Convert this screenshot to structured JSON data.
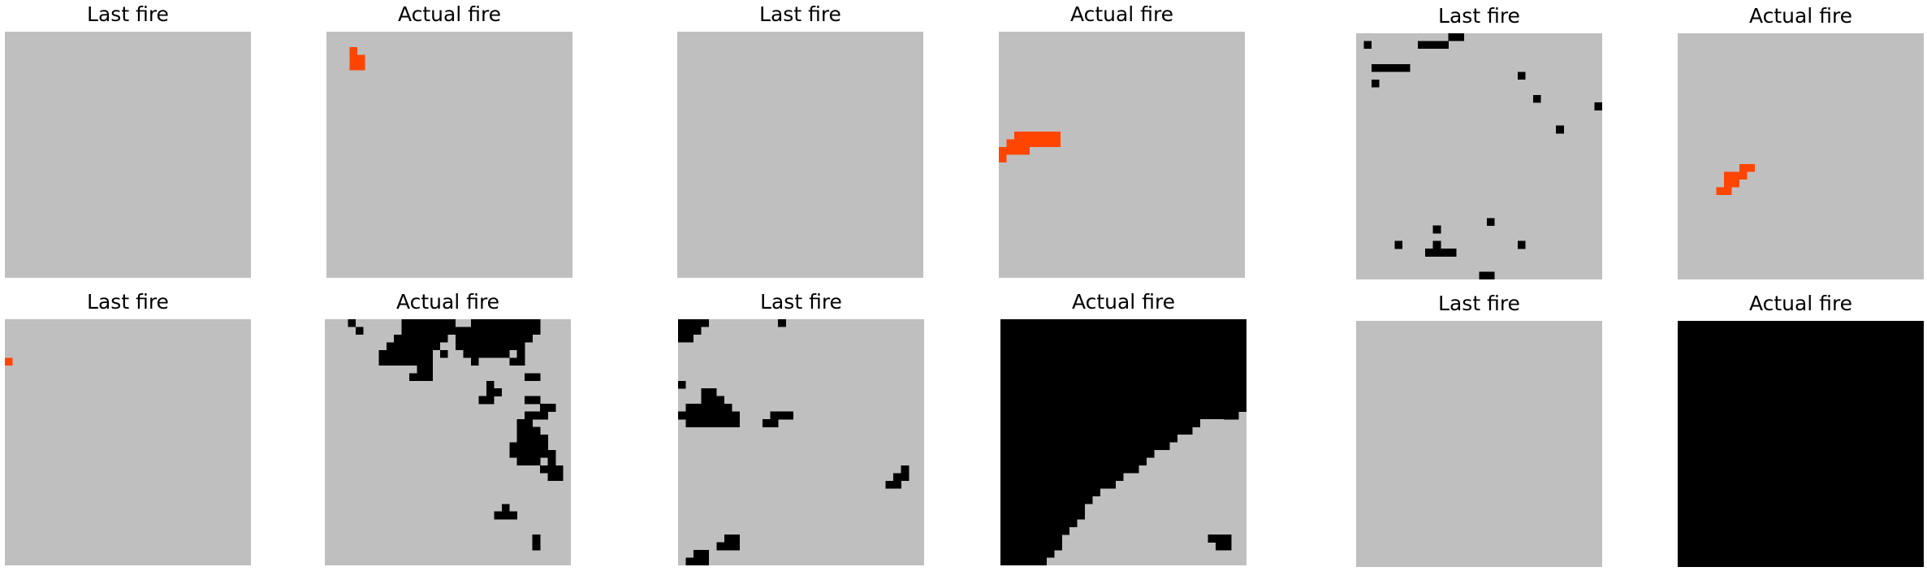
{
  "colors": {
    "no_fire": "#bfbfbf",
    "fire": "#000000",
    "new_fire": "#ff4500"
  },
  "chart_data": [
    {
      "type": "heatmap",
      "title": "Last fire",
      "grid": 32,
      "fill": "none",
      "cells": []
    },
    {
      "type": "heatmap",
      "title": "Actual fire",
      "grid": 32,
      "fill": "none",
      "cells": [
        [
          3,
          2,
          "n"
        ],
        [
          3,
          3,
          "n"
        ],
        [
          4,
          3,
          "n"
        ],
        [
          3,
          4,
          "n"
        ],
        [
          4,
          4,
          "n"
        ]
      ]
    },
    {
      "type": "heatmap",
      "title": "Last fire",
      "grid": 32,
      "fill": "none",
      "cells": []
    },
    {
      "type": "heatmap",
      "title": "Actual fire",
      "grid": 32,
      "fill": "none",
      "cells": [
        [
          2,
          13,
          "n"
        ],
        [
          3,
          13,
          "n"
        ],
        [
          4,
          13,
          "n"
        ],
        [
          5,
          13,
          "n"
        ],
        [
          6,
          13,
          "n"
        ],
        [
          7,
          13,
          "n"
        ],
        [
          1,
          14,
          "n"
        ],
        [
          2,
          14,
          "n"
        ],
        [
          3,
          14,
          "n"
        ],
        [
          4,
          14,
          "n"
        ],
        [
          5,
          14,
          "n"
        ],
        [
          6,
          14,
          "n"
        ],
        [
          7,
          14,
          "n"
        ],
        [
          0,
          15,
          "n"
        ],
        [
          1,
          15,
          "n"
        ],
        [
          2,
          15,
          "n"
        ],
        [
          3,
          15,
          "n"
        ],
        [
          0,
          16,
          "n"
        ]
      ]
    },
    {
      "type": "heatmap",
      "title": "Last fire",
      "grid": 32,
      "fill": "none",
      "cells": [
        [
          8,
          1,
          "f"
        ],
        [
          9,
          1,
          "f"
        ],
        [
          10,
          1,
          "f"
        ],
        [
          11,
          1,
          "f"
        ],
        [
          12,
          0,
          "f"
        ],
        [
          13,
          0,
          "f"
        ],
        [
          1,
          1,
          "f"
        ],
        [
          2,
          4,
          "f"
        ],
        [
          3,
          4,
          "f"
        ],
        [
          4,
          4,
          "f"
        ],
        [
          5,
          4,
          "f"
        ],
        [
          6,
          4,
          "f"
        ],
        [
          2,
          6,
          "f"
        ],
        [
          21,
          5,
          "f"
        ],
        [
          23,
          8,
          "f"
        ],
        [
          31,
          9,
          "f"
        ],
        [
          26,
          12,
          "f"
        ],
        [
          17,
          24,
          "f"
        ],
        [
          10,
          25,
          "f"
        ],
        [
          5,
          27,
          "f"
        ],
        [
          21,
          27,
          "f"
        ],
        [
          10,
          27,
          "f"
        ],
        [
          10,
          28,
          "f"
        ],
        [
          11,
          28,
          "f"
        ],
        [
          9,
          28,
          "f"
        ],
        [
          12,
          28,
          "f"
        ],
        [
          16,
          31,
          "f"
        ],
        [
          17,
          31,
          "f"
        ]
      ]
    },
    {
      "type": "heatmap",
      "title": "Actual fire",
      "grid": 32,
      "fill": "none",
      "cells": [
        [
          9,
          17,
          "n"
        ],
        [
          8,
          17,
          "n"
        ],
        [
          6,
          18,
          "n"
        ],
        [
          7,
          18,
          "n"
        ],
        [
          8,
          18,
          "n"
        ],
        [
          6,
          19,
          "n"
        ],
        [
          7,
          19,
          "n"
        ],
        [
          5,
          20,
          "n"
        ],
        [
          6,
          20,
          "n"
        ]
      ]
    },
    {
      "type": "heatmap",
      "title": "Last fire",
      "grid": 32,
      "fill": "none",
      "cells": [
        [
          0,
          5,
          "n"
        ]
      ]
    },
    {
      "type": "heatmap",
      "title": "Actual fire",
      "grid": 32,
      "fill": "none",
      "cells": [
        [
          3,
          0,
          "f"
        ],
        [
          4,
          1,
          "f"
        ],
        [
          10,
          0,
          "f"
        ],
        [
          11,
          0,
          "f"
        ],
        [
          12,
          0,
          "f"
        ],
        [
          13,
          0,
          "f"
        ],
        [
          14,
          0,
          "f"
        ],
        [
          15,
          0,
          "f"
        ],
        [
          16,
          0,
          "f"
        ],
        [
          19,
          0,
          "f"
        ],
        [
          20,
          0,
          "f"
        ],
        [
          21,
          0,
          "f"
        ],
        [
          22,
          0,
          "f"
        ],
        [
          23,
          0,
          "f"
        ],
        [
          24,
          0,
          "f"
        ],
        [
          25,
          0,
          "f"
        ],
        [
          26,
          0,
          "f"
        ],
        [
          27,
          0,
          "f"
        ],
        [
          10,
          1,
          "f"
        ],
        [
          11,
          1,
          "f"
        ],
        [
          12,
          1,
          "f"
        ],
        [
          13,
          1,
          "f"
        ],
        [
          14,
          1,
          "f"
        ],
        [
          15,
          1,
          "f"
        ],
        [
          16,
          1,
          "f"
        ],
        [
          17,
          1,
          "f"
        ],
        [
          18,
          1,
          "f"
        ],
        [
          19,
          1,
          "f"
        ],
        [
          20,
          1,
          "f"
        ],
        [
          21,
          1,
          "f"
        ],
        [
          22,
          1,
          "f"
        ],
        [
          23,
          1,
          "f"
        ],
        [
          24,
          1,
          "f"
        ],
        [
          25,
          1,
          "f"
        ],
        [
          26,
          1,
          "f"
        ],
        [
          27,
          1,
          "f"
        ],
        [
          9,
          2,
          "f"
        ],
        [
          10,
          2,
          "f"
        ],
        [
          11,
          2,
          "f"
        ],
        [
          12,
          2,
          "f"
        ],
        [
          13,
          2,
          "f"
        ],
        [
          14,
          2,
          "f"
        ],
        [
          15,
          2,
          "f"
        ],
        [
          17,
          2,
          "f"
        ],
        [
          18,
          2,
          "f"
        ],
        [
          19,
          2,
          "f"
        ],
        [
          20,
          2,
          "f"
        ],
        [
          21,
          2,
          "f"
        ],
        [
          22,
          2,
          "f"
        ],
        [
          23,
          2,
          "f"
        ],
        [
          24,
          2,
          "f"
        ],
        [
          25,
          2,
          "f"
        ],
        [
          26,
          2,
          "f"
        ],
        [
          8,
          3,
          "f"
        ],
        [
          9,
          3,
          "f"
        ],
        [
          10,
          3,
          "f"
        ],
        [
          11,
          3,
          "f"
        ],
        [
          12,
          3,
          "f"
        ],
        [
          13,
          3,
          "f"
        ],
        [
          14,
          3,
          "f"
        ],
        [
          17,
          3,
          "f"
        ],
        [
          18,
          3,
          "f"
        ],
        [
          19,
          3,
          "f"
        ],
        [
          20,
          3,
          "f"
        ],
        [
          21,
          3,
          "f"
        ],
        [
          22,
          3,
          "f"
        ],
        [
          23,
          3,
          "f"
        ],
        [
          24,
          3,
          "f"
        ],
        [
          25,
          3,
          "f"
        ],
        [
          7,
          4,
          "f"
        ],
        [
          8,
          4,
          "f"
        ],
        [
          9,
          4,
          "f"
        ],
        [
          10,
          4,
          "f"
        ],
        [
          11,
          4,
          "f"
        ],
        [
          12,
          4,
          "f"
        ],
        [
          13,
          4,
          "f"
        ],
        [
          15,
          4,
          "f"
        ],
        [
          18,
          4,
          "f"
        ],
        [
          19,
          4,
          "f"
        ],
        [
          20,
          4,
          "f"
        ],
        [
          21,
          4,
          "f"
        ],
        [
          22,
          4,
          "f"
        ],
        [
          23,
          4,
          "f"
        ],
        [
          25,
          4,
          "f"
        ],
        [
          7,
          5,
          "f"
        ],
        [
          8,
          5,
          "f"
        ],
        [
          9,
          5,
          "f"
        ],
        [
          10,
          5,
          "f"
        ],
        [
          11,
          5,
          "f"
        ],
        [
          12,
          5,
          "f"
        ],
        [
          13,
          5,
          "f"
        ],
        [
          19,
          5,
          "f"
        ],
        [
          24,
          5,
          "f"
        ],
        [
          25,
          5,
          "f"
        ],
        [
          12,
          6,
          "f"
        ],
        [
          13,
          6,
          "f"
        ],
        [
          11,
          7,
          "f"
        ],
        [
          12,
          7,
          "f"
        ],
        [
          13,
          7,
          "f"
        ],
        [
          26,
          7,
          "f"
        ],
        [
          27,
          7,
          "f"
        ],
        [
          21,
          8,
          "f"
        ],
        [
          21,
          9,
          "f"
        ],
        [
          22,
          9,
          "f"
        ],
        [
          20,
          10,
          "f"
        ],
        [
          21,
          10,
          "f"
        ],
        [
          26,
          10,
          "f"
        ],
        [
          27,
          10,
          "f"
        ],
        [
          28,
          11,
          "f"
        ],
        [
          29,
          11,
          "f"
        ],
        [
          26,
          12,
          "f"
        ],
        [
          27,
          12,
          "f"
        ],
        [
          28,
          12,
          "f"
        ],
        [
          25,
          13,
          "f"
        ],
        [
          26,
          13,
          "f"
        ],
        [
          25,
          14,
          "f"
        ],
        [
          26,
          14,
          "f"
        ],
        [
          27,
          14,
          "f"
        ],
        [
          25,
          15,
          "f"
        ],
        [
          26,
          15,
          "f"
        ],
        [
          27,
          15,
          "f"
        ],
        [
          28,
          15,
          "f"
        ],
        [
          24,
          16,
          "f"
        ],
        [
          25,
          16,
          "f"
        ],
        [
          26,
          16,
          "f"
        ],
        [
          27,
          16,
          "f"
        ],
        [
          28,
          16,
          "f"
        ],
        [
          24,
          17,
          "f"
        ],
        [
          25,
          17,
          "f"
        ],
        [
          26,
          17,
          "f"
        ],
        [
          27,
          17,
          "f"
        ],
        [
          28,
          17,
          "f"
        ],
        [
          29,
          17,
          "f"
        ],
        [
          25,
          18,
          "f"
        ],
        [
          26,
          18,
          "f"
        ],
        [
          27,
          18,
          "f"
        ],
        [
          29,
          18,
          "f"
        ],
        [
          28,
          19,
          "f"
        ],
        [
          29,
          19,
          "f"
        ],
        [
          30,
          19,
          "f"
        ],
        [
          29,
          20,
          "f"
        ],
        [
          30,
          20,
          "f"
        ],
        [
          23,
          24,
          "f"
        ],
        [
          22,
          25,
          "f"
        ],
        [
          23,
          25,
          "f"
        ],
        [
          24,
          25,
          "f"
        ],
        [
          27,
          28,
          "f"
        ],
        [
          27,
          29,
          "f"
        ]
      ]
    },
    {
      "type": "heatmap",
      "title": "Last fire",
      "grid": 32,
      "fill": "none",
      "cells": [
        [
          0,
          0,
          "f"
        ],
        [
          1,
          0,
          "f"
        ],
        [
          2,
          0,
          "f"
        ],
        [
          3,
          0,
          "f"
        ],
        [
          0,
          1,
          "f"
        ],
        [
          1,
          1,
          "f"
        ],
        [
          2,
          1,
          "f"
        ],
        [
          0,
          2,
          "f"
        ],
        [
          1,
          2,
          "f"
        ],
        [
          13,
          0,
          "f"
        ],
        [
          0,
          8,
          "f"
        ],
        [
          3,
          9,
          "f"
        ],
        [
          4,
          9,
          "f"
        ],
        [
          3,
          10,
          "f"
        ],
        [
          4,
          10,
          "f"
        ],
        [
          5,
          10,
          "f"
        ],
        [
          1,
          11,
          "f"
        ],
        [
          2,
          11,
          "f"
        ],
        [
          3,
          11,
          "f"
        ],
        [
          4,
          11,
          "f"
        ],
        [
          5,
          11,
          "f"
        ],
        [
          6,
          11,
          "f"
        ],
        [
          0,
          12,
          "f"
        ],
        [
          1,
          12,
          "f"
        ],
        [
          2,
          12,
          "f"
        ],
        [
          3,
          12,
          "f"
        ],
        [
          4,
          12,
          "f"
        ],
        [
          5,
          12,
          "f"
        ],
        [
          6,
          12,
          "f"
        ],
        [
          7,
          12,
          "f"
        ],
        [
          1,
          13,
          "f"
        ],
        [
          2,
          13,
          "f"
        ],
        [
          3,
          13,
          "f"
        ],
        [
          4,
          13,
          "f"
        ],
        [
          5,
          13,
          "f"
        ],
        [
          6,
          13,
          "f"
        ],
        [
          7,
          13,
          "f"
        ],
        [
          12,
          12,
          "f"
        ],
        [
          11,
          13,
          "f"
        ],
        [
          12,
          13,
          "f"
        ],
        [
          13,
          12,
          "f"
        ],
        [
          14,
          12,
          "f"
        ],
        [
          29,
          19,
          "f"
        ],
        [
          28,
          20,
          "f"
        ],
        [
          29,
          20,
          "f"
        ],
        [
          27,
          21,
          "f"
        ],
        [
          28,
          21,
          "f"
        ],
        [
          6,
          28,
          "f"
        ],
        [
          7,
          28,
          "f"
        ],
        [
          5,
          29,
          "f"
        ],
        [
          6,
          29,
          "f"
        ],
        [
          7,
          29,
          "f"
        ],
        [
          2,
          30,
          "f"
        ],
        [
          3,
          30,
          "f"
        ],
        [
          1,
          31,
          "f"
        ],
        [
          2,
          31,
          "f"
        ],
        [
          3,
          31,
          "f"
        ]
      ]
    },
    {
      "type": "heatmap",
      "title": "Actual fire",
      "grid": 32,
      "fill": "upper-left-of-boundary",
      "boundary_rows": [
        32,
        32,
        32,
        32,
        32,
        32,
        32,
        32,
        32,
        32,
        32,
        32,
        31,
        27,
        25,
        23,
        22,
        20,
        19,
        18,
        16,
        15,
        13,
        12,
        11,
        11,
        10,
        9,
        8,
        8,
        7,
        6
      ],
      "cells": [
        [
          27,
          13,
          "e"
        ],
        [
          28,
          13,
          "e"
        ],
        [
          26,
          13,
          "e"
        ],
        [
          20,
          27,
          "e"
        ],
        [
          18,
          28,
          "e"
        ],
        [
          17,
          28,
          "e"
        ],
        [
          16,
          28,
          "e"
        ],
        [
          15,
          28,
          "e"
        ],
        [
          19,
          28,
          "e"
        ],
        [
          27,
          28,
          "f"
        ],
        [
          28,
          28,
          "f"
        ],
        [
          29,
          28,
          "f"
        ],
        [
          28,
          29,
          "f"
        ],
        [
          29,
          29,
          "f"
        ]
      ]
    },
    {
      "type": "heatmap",
      "title": "Last fire",
      "grid": 32,
      "fill": "none",
      "cells": []
    },
    {
      "type": "heatmap",
      "title": "Actual fire",
      "grid": 32,
      "fill": "all",
      "cells": []
    }
  ]
}
